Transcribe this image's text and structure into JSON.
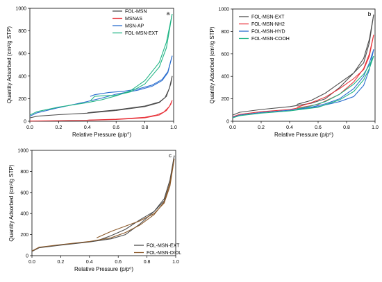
{
  "chart_data": [
    {
      "panel_label": "a",
      "type": "line",
      "xlabel": "Relative Pressure (p/p°)",
      "ylabel": "Quantity Adsorbed (cm³/g STP)",
      "xlim": [
        0,
        1.0
      ],
      "ylim": [
        0,
        1000
      ],
      "xticks": [
        "0.0",
        "0.2",
        "0.4",
        "0.6",
        "0.8",
        "1.0"
      ],
      "yticks": [
        "0",
        "200",
        "400",
        "600",
        "800",
        "1000"
      ],
      "legend_position": "top-right",
      "series": [
        {
          "name": "FOL-MSN",
          "color": "#4d4d4d",
          "adsorption": [
            [
              0.0,
              30
            ],
            [
              0.05,
              45
            ],
            [
              0.2,
              58
            ],
            [
              0.4,
              72
            ],
            [
              0.6,
              95
            ],
            [
              0.8,
              130
            ],
            [
              0.9,
              165
            ],
            [
              0.95,
              220
            ],
            [
              0.98,
              330
            ],
            [
              0.99,
              400
            ]
          ],
          "desorption": [
            [
              0.99,
              400
            ],
            [
              0.97,
              290
            ],
            [
              0.94,
              210
            ],
            [
              0.9,
              170
            ],
            [
              0.8,
              135
            ],
            [
              0.6,
              100
            ],
            [
              0.45,
              82
            ],
            [
              0.4,
              75
            ]
          ]
        },
        {
          "name": "MSNAS",
          "color": "#e8343b",
          "adsorption": [
            [
              0.0,
              2
            ],
            [
              0.2,
              5
            ],
            [
              0.4,
              9
            ],
            [
              0.6,
              16
            ],
            [
              0.8,
              30
            ],
            [
              0.9,
              55
            ],
            [
              0.95,
              95
            ],
            [
              0.98,
              150
            ],
            [
              0.99,
              185
            ]
          ],
          "desorption": [
            [
              0.99,
              185
            ],
            [
              0.97,
              130
            ],
            [
              0.93,
              80
            ],
            [
              0.88,
              55
            ],
            [
              0.8,
              35
            ],
            [
              0.6,
              18
            ],
            [
              0.4,
              10
            ]
          ]
        },
        {
          "name": "MSN-AP",
          "color": "#2b6ecf",
          "adsorption": [
            [
              0.0,
              45
            ],
            [
              0.05,
              75
            ],
            [
              0.2,
              120
            ],
            [
              0.4,
              175
            ],
            [
              0.5,
              205
            ],
            [
              0.6,
              240
            ],
            [
              0.75,
              275
            ],
            [
              0.85,
              310
            ],
            [
              0.92,
              360
            ],
            [
              0.96,
              430
            ],
            [
              0.99,
              580
            ]
          ],
          "desorption": [
            [
              0.99,
              580
            ],
            [
              0.96,
              440
            ],
            [
              0.92,
              370
            ],
            [
              0.85,
              320
            ],
            [
              0.75,
              285
            ],
            [
              0.65,
              265
            ],
            [
              0.55,
              255
            ],
            [
              0.45,
              235
            ],
            [
              0.42,
              220
            ]
          ]
        },
        {
          "name": "FOL-MSN-EXT",
          "color": "#21b585",
          "adsorption": [
            [
              0.0,
              55
            ],
            [
              0.05,
              85
            ],
            [
              0.2,
              125
            ],
            [
              0.4,
              165
            ],
            [
              0.5,
              190
            ],
            [
              0.6,
              225
            ],
            [
              0.7,
              270
            ],
            [
              0.8,
              360
            ],
            [
              0.9,
              520
            ],
            [
              0.95,
              700
            ],
            [
              0.99,
              950
            ]
          ],
          "desorption": [
            [
              0.99,
              950
            ],
            [
              0.95,
              650
            ],
            [
              0.9,
              480
            ],
            [
              0.8,
              330
            ],
            [
              0.7,
              260
            ],
            [
              0.6,
              230
            ],
            [
              0.5,
              225
            ],
            [
              0.45,
              220
            ],
            [
              0.42,
              180
            ]
          ]
        }
      ]
    },
    {
      "panel_label": "b",
      "type": "line",
      "xlabel": "Relative Pressure (p/p⁰)",
      "ylabel": "Quantity Adsorbed (cm³/g STP)",
      "xlim": [
        0,
        1.0
      ],
      "ylim": [
        0,
        1000
      ],
      "xticks": [
        "0.0",
        "0.2",
        "0.4",
        "0.6",
        "0.8",
        "1.0"
      ],
      "yticks": [
        "0",
        "200",
        "400",
        "600",
        "800",
        "1000"
      ],
      "legend_position": "top-left",
      "series": [
        {
          "name": "FOL-MSN-EXT",
          "color": "#4d4d4d",
          "adsorption": [
            [
              0.0,
              55
            ],
            [
              0.05,
              80
            ],
            [
              0.2,
              105
            ],
            [
              0.4,
              130
            ],
            [
              0.55,
              160
            ],
            [
              0.65,
              200
            ],
            [
              0.75,
              300
            ],
            [
              0.85,
              430
            ],
            [
              0.92,
              560
            ],
            [
              0.96,
              730
            ],
            [
              0.99,
              950
            ]
          ],
          "desorption": [
            [
              0.99,
              950
            ],
            [
              0.96,
              700
            ],
            [
              0.92,
              520
            ],
            [
              0.85,
              430
            ],
            [
              0.75,
              340
            ],
            [
              0.65,
              250
            ],
            [
              0.55,
              185
            ],
            [
              0.45,
              150
            ]
          ]
        },
        {
          "name": "FOL-MSN-NH2",
          "color": "#e8343b",
          "adsorption": [
            [
              0.0,
              40
            ],
            [
              0.05,
              62
            ],
            [
              0.2,
              85
            ],
            [
              0.4,
              105
            ],
            [
              0.6,
              150
            ],
            [
              0.75,
              240
            ],
            [
              0.85,
              350
            ],
            [
              0.92,
              470
            ],
            [
              0.96,
              600
            ],
            [
              0.99,
              770
            ]
          ],
          "desorption": [
            [
              0.99,
              770
            ],
            [
              0.96,
              580
            ],
            [
              0.92,
              460
            ],
            [
              0.85,
              380
            ],
            [
              0.75,
              290
            ],
            [
              0.65,
              215
            ],
            [
              0.55,
              165
            ],
            [
              0.45,
              125
            ]
          ]
        },
        {
          "name": "FOL-MSN-HYD",
          "color": "#2b6ecf",
          "adsorption": [
            [
              0.0,
              35
            ],
            [
              0.05,
              55
            ],
            [
              0.2,
              78
            ],
            [
              0.4,
              98
            ],
            [
              0.6,
              130
            ],
            [
              0.75,
              175
            ],
            [
              0.85,
              220
            ],
            [
              0.92,
              320
            ],
            [
              0.96,
              460
            ],
            [
              0.99,
              640
            ]
          ],
          "desorption": [
            [
              0.99,
              640
            ],
            [
              0.96,
              520
            ],
            [
              0.92,
              400
            ],
            [
              0.85,
              290
            ],
            [
              0.75,
              200
            ],
            [
              0.65,
              155
            ],
            [
              0.55,
              125
            ],
            [
              0.45,
              108
            ]
          ]
        },
        {
          "name": "FOL-MSN-COOH",
          "color": "#21b585",
          "adsorption": [
            [
              0.0,
              30
            ],
            [
              0.05,
              50
            ],
            [
              0.2,
              72
            ],
            [
              0.4,
              92
            ],
            [
              0.6,
              125
            ],
            [
              0.75,
              190
            ],
            [
              0.85,
              265
            ],
            [
              0.92,
              370
            ],
            [
              0.96,
              470
            ],
            [
              0.99,
              580
            ]
          ],
          "desorption": [
            [
              0.99,
              580
            ],
            [
              0.96,
              500
            ],
            [
              0.92,
              420
            ],
            [
              0.85,
              330
            ],
            [
              0.75,
              240
            ],
            [
              0.65,
              175
            ],
            [
              0.55,
              135
            ],
            [
              0.45,
              110
            ]
          ]
        }
      ]
    },
    {
      "panel_label": "c",
      "type": "line",
      "xlabel": "Relative Pressure (p/p⁰)",
      "ylabel": "Quantity Adsorbed (cm³/g STP)",
      "xlim": [
        0,
        1.0
      ],
      "ylim": [
        0,
        1000
      ],
      "xticks": [
        "0.0",
        "0.2",
        "0.4",
        "0.6",
        "0.8",
        "1.0"
      ],
      "yticks": [
        "0",
        "200",
        "400",
        "600",
        "800",
        "1000"
      ],
      "legend_position": "bottom-right",
      "series": [
        {
          "name": "FOL-MSN-EXT",
          "color": "#4d4d4d",
          "adsorption": [
            [
              0.0,
              40
            ],
            [
              0.05,
              75
            ],
            [
              0.2,
              100
            ],
            [
              0.4,
              130
            ],
            [
              0.55,
              160
            ],
            [
              0.65,
              200
            ],
            [
              0.75,
              300
            ],
            [
              0.85,
              420
            ],
            [
              0.92,
              540
            ],
            [
              0.96,
              720
            ],
            [
              0.99,
              950
            ]
          ],
          "desorption": [
            [
              0.99,
              950
            ],
            [
              0.96,
              690
            ],
            [
              0.92,
              520
            ],
            [
              0.85,
              420
            ],
            [
              0.75,
              340
            ],
            [
              0.65,
              250
            ],
            [
              0.55,
              190
            ],
            [
              0.47,
              150
            ]
          ]
        },
        {
          "name": "FOL-MSN-DIOL",
          "color": "#8b5a2b",
          "adsorption": [
            [
              0.0,
              45
            ],
            [
              0.05,
              80
            ],
            [
              0.2,
              105
            ],
            [
              0.4,
              135
            ],
            [
              0.55,
              170
            ],
            [
              0.65,
              220
            ],
            [
              0.75,
              290
            ],
            [
              0.85,
              390
            ],
            [
              0.92,
              510
            ],
            [
              0.96,
              690
            ],
            [
              0.99,
              920
            ]
          ],
          "desorption": [
            [
              0.99,
              920
            ],
            [
              0.96,
              660
            ],
            [
              0.92,
              500
            ],
            [
              0.85,
              400
            ],
            [
              0.75,
              330
            ],
            [
              0.65,
              280
            ],
            [
              0.55,
              230
            ],
            [
              0.45,
              170
            ]
          ]
        }
      ]
    }
  ]
}
